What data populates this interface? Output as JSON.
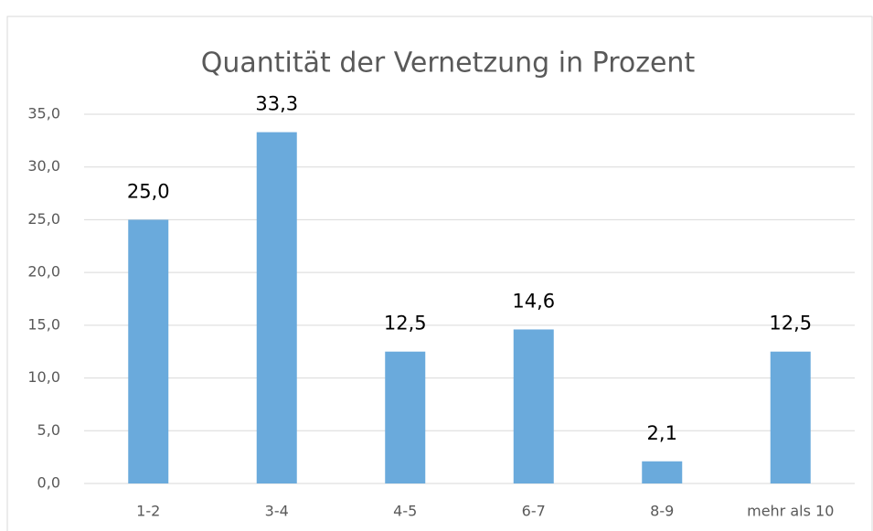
{
  "chart_data": {
    "type": "bar",
    "title": "Quantität der Vernetzung in Prozent",
    "categories": [
      "1-2",
      "3-4",
      "4-5",
      "6-7",
      "8-9",
      "mehr als 10"
    ],
    "values": [
      25.0,
      33.3,
      12.5,
      14.6,
      2.1,
      12.5
    ],
    "value_labels": [
      "25,0",
      "33,3",
      "12,5",
      "14,6",
      "2,1",
      "12,5"
    ],
    "color": "#6aaadc",
    "ylim": [
      0,
      35
    ],
    "yticks": [
      {
        "value": 0,
        "label": "0,0"
      },
      {
        "value": 5,
        "label": "5,0"
      },
      {
        "value": 10,
        "label": "10,0"
      },
      {
        "value": 15,
        "label": "15,0"
      },
      {
        "value": 20,
        "label": "20,0"
      },
      {
        "value": 25,
        "label": "25,0"
      },
      {
        "value": 30,
        "label": "30,0"
      },
      {
        "value": 35,
        "label": "35,0"
      }
    ],
    "grid": true
  }
}
